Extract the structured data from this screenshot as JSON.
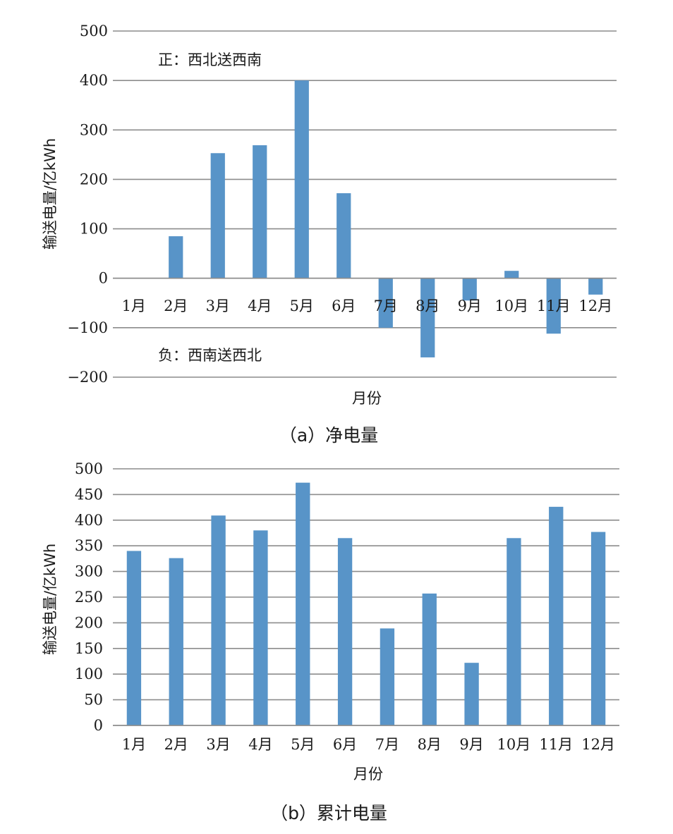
{
  "chart_data": [
    {
      "type": "bar",
      "categories": [
        "1月",
        "2月",
        "3月",
        "4月",
        "5月",
        "6月",
        "7月",
        "8月",
        "9月",
        "10月",
        "11月",
        "12月"
      ],
      "values": [
        0,
        85,
        253,
        269,
        400,
        172,
        -100,
        -160,
        -45,
        15,
        -112,
        -33
      ],
      "yticks": [
        500,
        400,
        300,
        200,
        100,
        0,
        -100,
        -200
      ],
      "ytick_labels": [
        "500",
        "400",
        "300",
        "200",
        "100",
        "0",
        "−100",
        "−200"
      ],
      "ylim": [
        -200,
        500
      ],
      "xlabel": "月份",
      "ylabel": "输送电量/亿kWh",
      "annotation_positive": "正：西北送西南",
      "annotation_negative": "负：西南送西北",
      "caption": "（a）净电量",
      "grid": true,
      "color": "#5894c8"
    },
    {
      "type": "bar",
      "categories": [
        "1月",
        "2月",
        "3月",
        "4月",
        "5月",
        "6月",
        "7月",
        "8月",
        "9月",
        "10月",
        "11月",
        "12月"
      ],
      "values": [
        340,
        326,
        409,
        380,
        473,
        365,
        189,
        257,
        122,
        365,
        426,
        377
      ],
      "yticks": [
        500,
        450,
        400,
        350,
        300,
        250,
        200,
        150,
        100,
        50,
        0
      ],
      "ytick_labels": [
        "500",
        "450",
        "400",
        "350",
        "300",
        "250",
        "200",
        "150",
        "100",
        "50",
        "0"
      ],
      "ylim": [
        0,
        500
      ],
      "xlabel": "月份",
      "ylabel": "输送电量/亿kWh",
      "caption": "（b）累计电量",
      "grid": true,
      "color": "#5894c8"
    }
  ]
}
